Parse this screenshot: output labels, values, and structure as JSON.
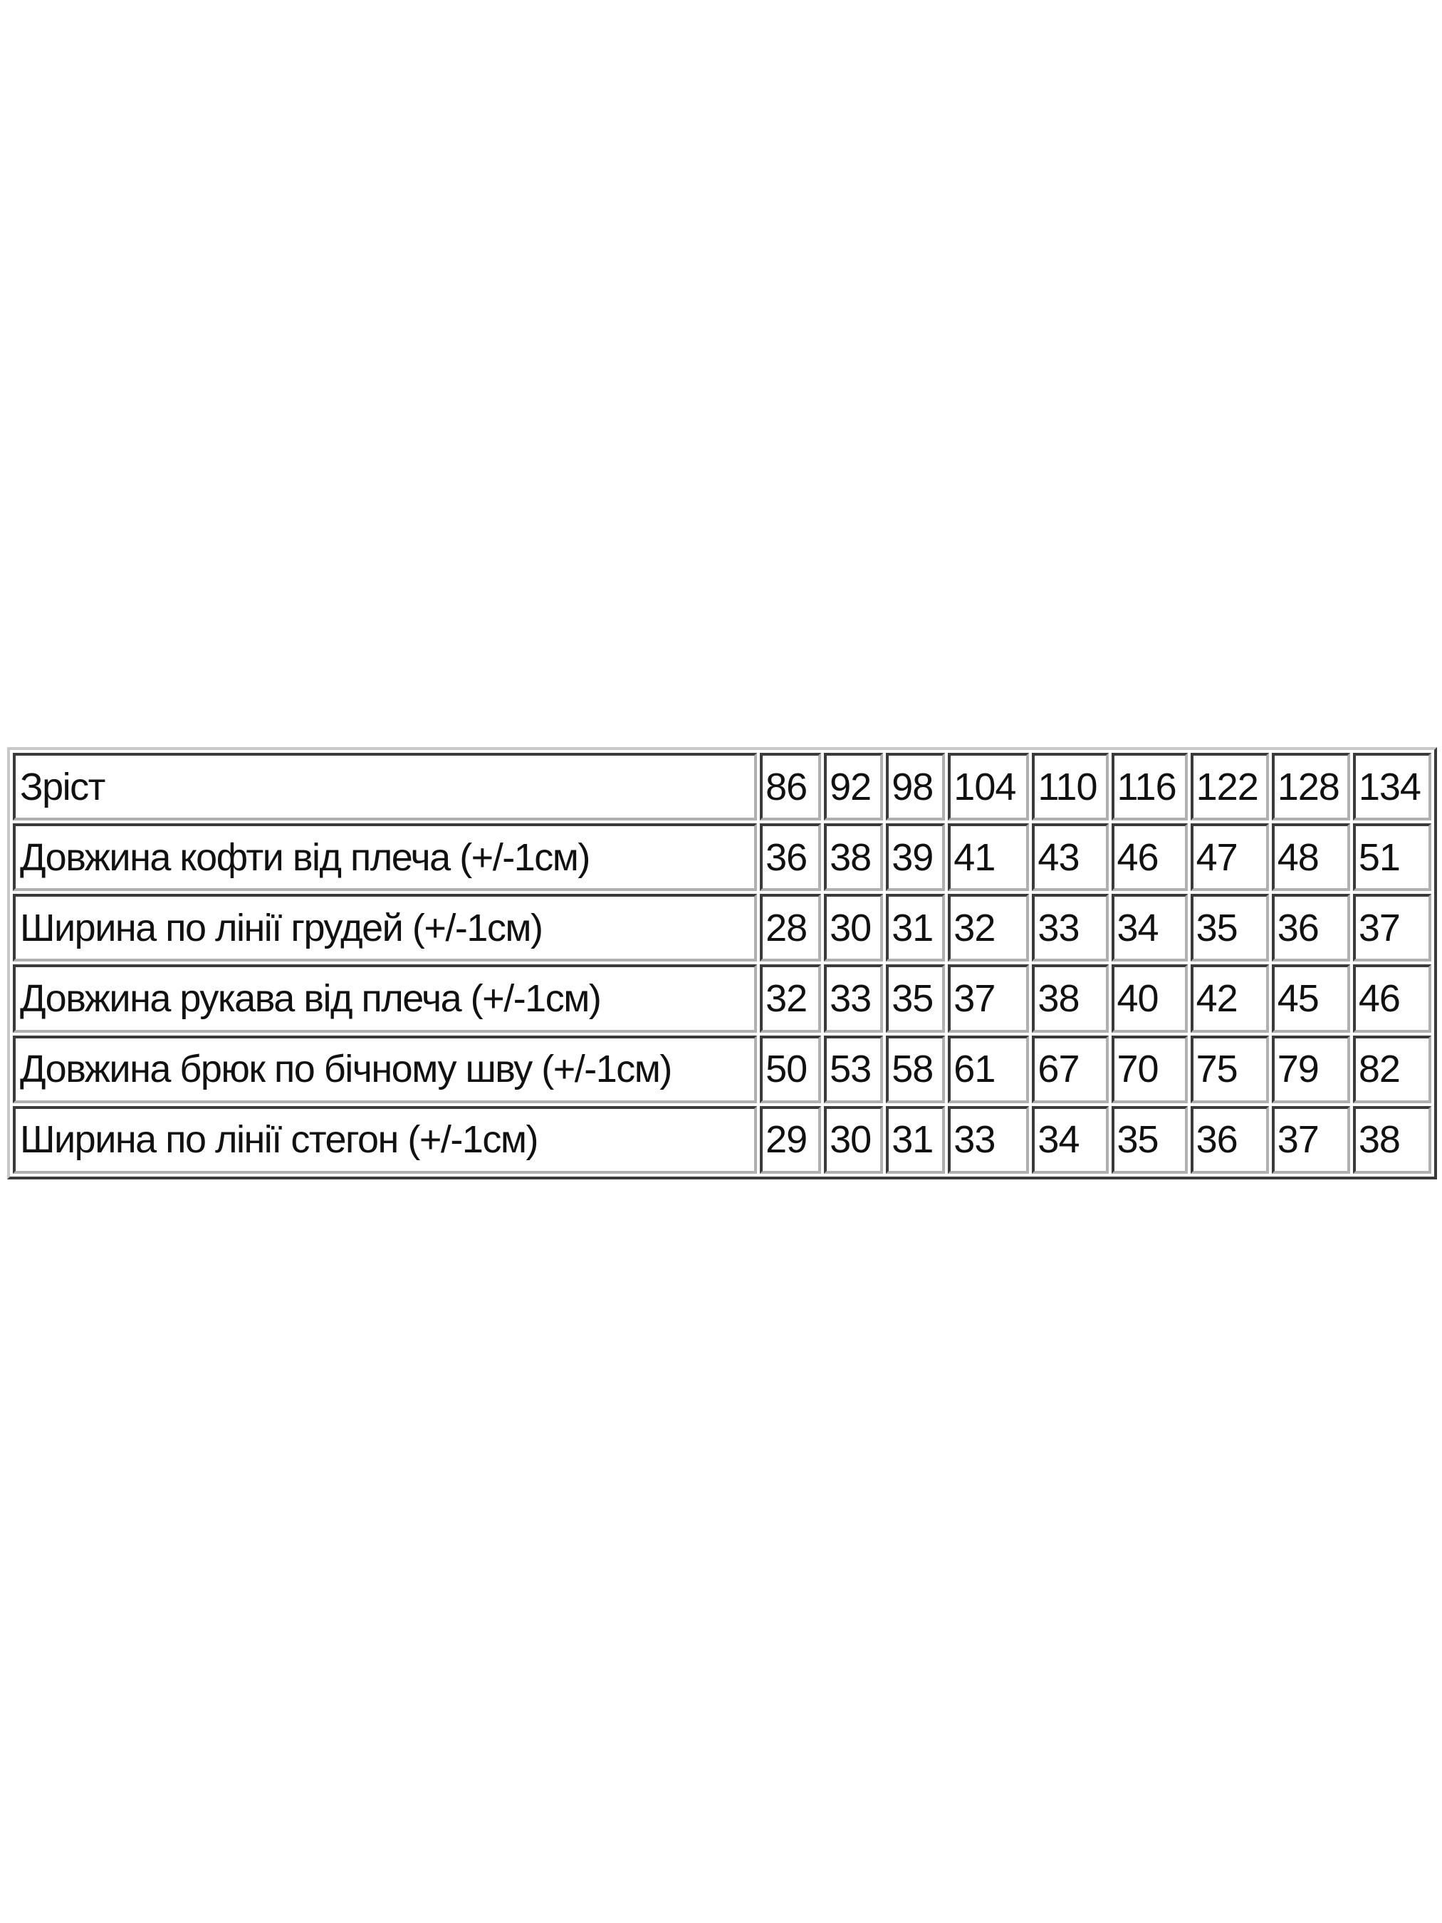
{
  "table": {
    "rows": [
      {
        "label": "Зріст",
        "values": [
          "86",
          "92",
          "98",
          "104",
          "110",
          "116",
          "122",
          "128",
          "134"
        ]
      },
      {
        "label": "Довжина кофти від плеча (+/-1см)",
        "values": [
          "36",
          "38",
          "39",
          "41",
          "43",
          "46",
          "47",
          "48",
          "51"
        ]
      },
      {
        "label": "Ширина по лінії грудей (+/-1см)",
        "values": [
          "28",
          "30",
          "31",
          "32",
          "33",
          "34",
          "35",
          "36",
          "37"
        ]
      },
      {
        "label": "Довжина рукава від плеча (+/-1см)",
        "values": [
          "32",
          "33",
          "35",
          "37",
          "38",
          "40",
          "42",
          "45",
          "46"
        ]
      },
      {
        "label": "Довжина брюк по бічному шву (+/-1см)",
        "values": [
          "50",
          "53",
          "58",
          "61",
          "67",
          "70",
          "75",
          "79",
          "82"
        ]
      },
      {
        "label": "Ширина по лінії стегон (+/-1см)",
        "values": [
          "29",
          "30",
          "31",
          "33",
          "34",
          "35",
          "36",
          "37",
          "38"
        ]
      }
    ]
  }
}
